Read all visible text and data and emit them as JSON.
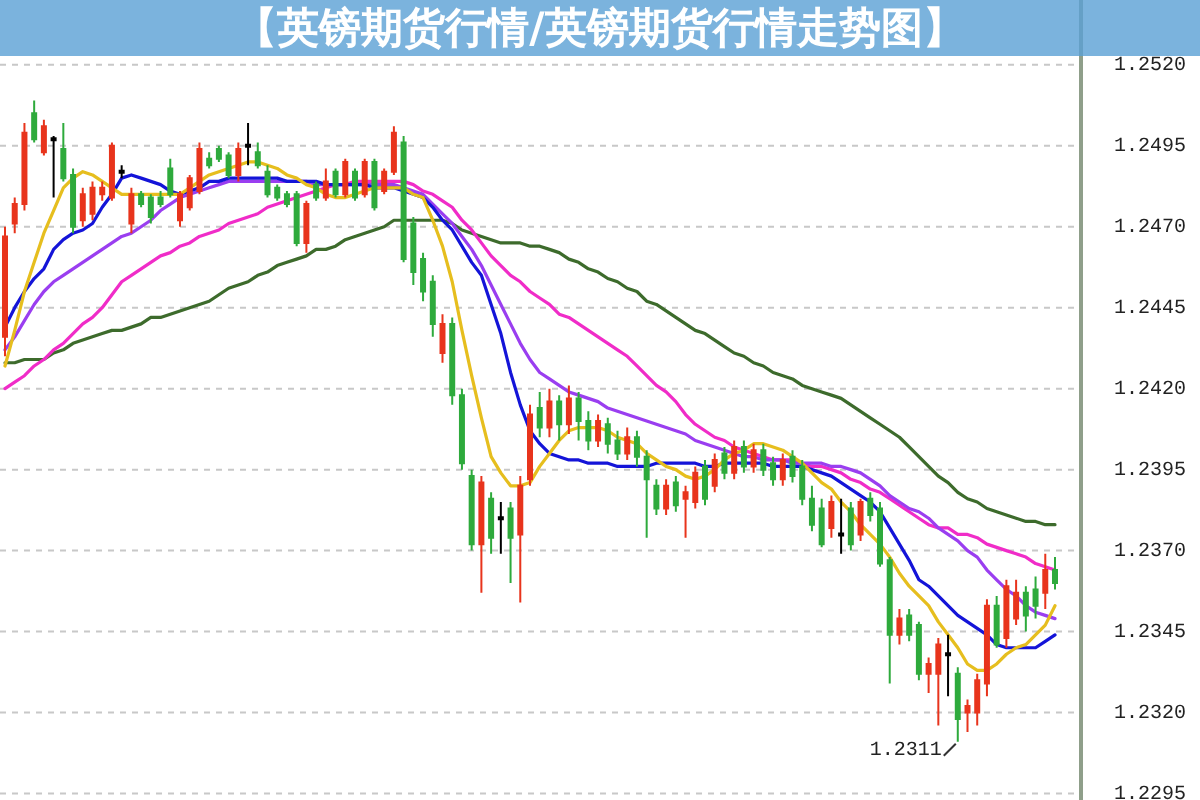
{
  "chart_data": {
    "type": "candlestick",
    "title": "【英镑期货行情/英镑期货行情走势图】",
    "categories": [
      null,
      null,
      null,
      null,
      null,
      null,
      null,
      null,
      null,
      null,
      null,
      null,
      null,
      null,
      null,
      null,
      null,
      null,
      null,
      null,
      null,
      null,
      null,
      null,
      null,
      null,
      null,
      null,
      null,
      null,
      null,
      null,
      null,
      null,
      null,
      null,
      null,
      null,
      null,
      null,
      null,
      null,
      null,
      null,
      null,
      null,
      null,
      null,
      null,
      null,
      null,
      null,
      null,
      null,
      null,
      null,
      null,
      null,
      null,
      null,
      null,
      null,
      null,
      null,
      null,
      null,
      null,
      null,
      null,
      null,
      null,
      null,
      null,
      null,
      null,
      null,
      null,
      null,
      null,
      null,
      null,
      null,
      null,
      null,
      null,
      null,
      null,
      null,
      null,
      null,
      null,
      null,
      null,
      null,
      null,
      null,
      null,
      null,
      null,
      null,
      null,
      null,
      null,
      null,
      null,
      null,
      null,
      null,
      null
    ],
    "ohlc": [
      [
        1.2436,
        1.247,
        1.243,
        1.2467
      ],
      [
        1.2471,
        1.2479,
        1.2468,
        1.2477
      ],
      [
        1.2477,
        1.2502,
        1.2475,
        1.2499
      ],
      [
        1.2505,
        1.2509,
        1.2496,
        1.2497
      ],
      [
        1.2493,
        1.2503,
        1.2492,
        1.2501
      ],
      [
        1.2497,
        1.2498,
        1.2479,
        1.2497
      ],
      [
        1.2494,
        1.2502,
        1.2484,
        1.2485
      ],
      [
        1.2486,
        1.2488,
        1.2468,
        1.247
      ],
      [
        1.2472,
        1.2482,
        1.247,
        1.248
      ],
      [
        1.2474,
        1.2484,
        1.2472,
        1.2482
      ],
      [
        1.248,
        1.2484,
        1.2478,
        1.2482
      ],
      [
        1.2479,
        1.2496,
        1.2478,
        1.2495
      ],
      [
        1.2487,
        1.2489,
        1.2485,
        1.2487
      ],
      [
        1.2471,
        1.2482,
        1.2468,
        1.248
      ],
      [
        1.248,
        1.2481,
        1.2476,
        1.2477
      ],
      [
        1.2479,
        1.248,
        1.2471,
        1.2473
      ],
      [
        1.2479,
        1.2481,
        1.2476,
        1.2477
      ],
      [
        1.2488,
        1.2491,
        1.2479,
        1.248
      ],
      [
        1.2472,
        1.2481,
        1.247,
        1.248
      ],
      [
        1.2476,
        1.2486,
        1.2475,
        1.2485
      ],
      [
        1.2481,
        1.2496,
        1.248,
        1.2494
      ],
      [
        1.2491,
        1.2493,
        1.2488,
        1.2489
      ],
      [
        1.2494,
        1.2495,
        1.249,
        1.2491
      ],
      [
        1.2492,
        1.2493,
        1.2485,
        1.2486
      ],
      [
        1.2486,
        1.2496,
        1.2484,
        1.2494
      ],
      [
        1.2495,
        1.2502,
        1.2489,
        1.2495
      ],
      [
        1.2493,
        1.2496,
        1.2488,
        1.2489
      ],
      [
        1.2487,
        1.2489,
        1.2479,
        1.248
      ],
      [
        1.2482,
        1.2483,
        1.2478,
        1.2479
      ],
      [
        1.248,
        1.2481,
        1.2476,
        1.2477
      ],
      [
        1.248,
        1.2481,
        1.2464,
        1.2465
      ],
      [
        1.2465,
        1.2478,
        1.2462,
        1.2477
      ],
      [
        1.2483,
        1.2484,
        1.2478,
        1.2479
      ],
      [
        1.2479,
        1.2488,
        1.2478,
        1.2484
      ],
      [
        1.2487,
        1.2488,
        1.2479,
        1.248
      ],
      [
        1.248,
        1.2491,
        1.2479,
        1.249
      ],
      [
        1.2487,
        1.2488,
        1.2478,
        1.2479
      ],
      [
        1.248,
        1.2491,
        1.2479,
        1.249
      ],
      [
        1.249,
        1.2491,
        1.2475,
        1.2476
      ],
      [
        1.2481,
        1.2488,
        1.248,
        1.2487
      ],
      [
        1.2487,
        1.2501,
        1.2486,
        1.2499
      ],
      [
        1.2496,
        1.2498,
        1.2459,
        1.246
      ],
      [
        1.2471,
        1.2473,
        1.2452,
        1.2456
      ],
      [
        1.246,
        1.2462,
        1.2447,
        1.245
      ],
      [
        1.2453,
        1.2455,
        1.2436,
        1.244
      ],
      [
        1.2431,
        1.2443,
        1.2428,
        1.244
      ],
      [
        1.244,
        1.2442,
        1.2415,
        1.2418
      ],
      [
        1.2418,
        1.242,
        1.2395,
        1.2397
      ],
      [
        1.2393,
        1.2395,
        1.237,
        1.2372
      ],
      [
        1.2372,
        1.2393,
        1.2357,
        1.2391
      ],
      [
        1.2386,
        1.2388,
        1.2369,
        1.2374
      ],
      [
        1.238,
        1.2385,
        1.2369,
        1.238
      ],
      [
        1.2383,
        1.2385,
        1.236,
        1.2374
      ],
      [
        1.2375,
        1.2393,
        1.2354,
        1.239
      ],
      [
        1.2392,
        1.2415,
        1.239,
        1.2412
      ],
      [
        1.2414,
        1.2419,
        1.2405,
        1.2408
      ],
      [
        1.2408,
        1.242,
        1.2405,
        1.2416
      ],
      [
        1.2416,
        1.2418,
        1.2404,
        1.2409
      ],
      [
        1.2409,
        1.2421,
        1.2406,
        1.2417
      ],
      [
        1.2417,
        1.2419,
        1.2404,
        1.241
      ],
      [
        1.241,
        1.2413,
        1.2401,
        1.2404
      ],
      [
        1.2404,
        1.2412,
        1.2402,
        1.241
      ],
      [
        1.2409,
        1.2411,
        1.24,
        1.2403
      ],
      [
        1.2404,
        1.2407,
        1.2398,
        1.24
      ],
      [
        1.24,
        1.2408,
        1.2398,
        1.2405
      ],
      [
        1.2405,
        1.2407,
        1.2396,
        1.2399
      ],
      [
        1.2399,
        1.2401,
        1.2374,
        1.2392
      ],
      [
        1.239,
        1.2392,
        1.2381,
        1.2383
      ],
      [
        1.2383,
        1.2392,
        1.2381,
        1.239
      ],
      [
        1.2391,
        1.2393,
        1.2382,
        1.2384
      ],
      [
        1.2386,
        1.239,
        1.2374,
        1.2388
      ],
      [
        1.2385,
        1.2396,
        1.2383,
        1.2394
      ],
      [
        1.2396,
        1.2398,
        1.2384,
        1.2386
      ],
      [
        1.239,
        1.24,
        1.2388,
        1.2398
      ],
      [
        1.24,
        1.2402,
        1.2392,
        1.2394
      ],
      [
        1.2394,
        1.2404,
        1.2392,
        1.2402
      ],
      [
        1.2402,
        1.2404,
        1.2394,
        1.2396
      ],
      [
        1.2396,
        1.2403,
        1.2394,
        1.2401
      ],
      [
        1.2401,
        1.2403,
        1.2393,
        1.2395
      ],
      [
        1.2397,
        1.2399,
        1.239,
        1.2392
      ],
      [
        1.2392,
        1.24,
        1.239,
        1.2398
      ],
      [
        1.2399,
        1.2401,
        1.2391,
        1.2393
      ],
      [
        1.2396,
        1.2398,
        1.2384,
        1.2386
      ],
      [
        1.2386,
        1.239,
        1.2376,
        1.2378
      ],
      [
        1.2383,
        1.2386,
        1.2371,
        1.2372
      ],
      [
        1.2377,
        1.2387,
        1.2374,
        1.2385
      ],
      [
        1.2375,
        1.2386,
        1.2369,
        1.2375
      ],
      [
        1.2383,
        1.2385,
        1.237,
        1.2372
      ],
      [
        1.2375,
        1.2386,
        1.2373,
        1.2385
      ],
      [
        1.2386,
        1.2388,
        1.2379,
        1.2381
      ],
      [
        1.2383,
        1.2385,
        1.2365,
        1.2366
      ],
      [
        1.2367,
        1.2368,
        1.2329,
        1.2344
      ],
      [
        1.2344,
        1.2352,
        1.2341,
        1.2349
      ],
      [
        1.235,
        1.2352,
        1.2342,
        1.2344
      ],
      [
        1.2347,
        1.2348,
        1.233,
        1.2332
      ],
      [
        1.2332,
        1.2337,
        1.2326,
        1.2335
      ],
      [
        1.2332,
        1.2343,
        1.2316,
        1.2341
      ],
      [
        1.2338,
        1.2344,
        1.2325,
        1.2338
      ],
      [
        1.2332,
        1.2334,
        1.2311,
        1.2318
      ],
      [
        1.232,
        1.2324,
        1.2314,
        1.2322
      ],
      [
        1.232,
        1.2332,
        1.2316,
        1.233
      ],
      [
        1.2329,
        1.2355,
        1.2325,
        1.2353
      ],
      [
        1.2353,
        1.2356,
        1.234,
        1.2341
      ],
      [
        1.2343,
        1.2361,
        1.234,
        1.2359
      ],
      [
        1.2349,
        1.2361,
        1.2347,
        1.2357
      ],
      [
        1.2357,
        1.2359,
        1.2345,
        1.235
      ],
      [
        1.2358,
        1.2362,
        1.2349,
        1.2353
      ],
      [
        1.2357,
        1.2369,
        1.2352,
        1.2364
      ],
      [
        1.2364,
        1.2368,
        1.2358,
        1.236
      ]
    ],
    "colors": [
      "#e8341c",
      "#e8341c",
      "#e8341c",
      "#2eaa3c",
      "#e8341c",
      "#000000",
      "#2eaa3c",
      "#2eaa3c",
      "#e8341c",
      "#e8341c",
      "#e8341c",
      "#e8341c",
      "#000000",
      "#e8341c",
      "#2eaa3c",
      "#2eaa3c",
      "#2eaa3c",
      "#2eaa3c",
      "#e8341c",
      "#e8341c",
      "#e8341c",
      "#2eaa3c",
      "#2eaa3c",
      "#2eaa3c",
      "#e8341c",
      "#000000",
      "#2eaa3c",
      "#2eaa3c",
      "#2eaa3c",
      "#2eaa3c",
      "#2eaa3c",
      "#e8341c",
      "#2eaa3c",
      "#e8341c",
      "#2eaa3c",
      "#e8341c",
      "#2eaa3c",
      "#e8341c",
      "#2eaa3c",
      "#e8341c",
      "#e8341c",
      "#2eaa3c",
      "#2eaa3c",
      "#2eaa3c",
      "#2eaa3c",
      "#e8341c",
      "#2eaa3c",
      "#2eaa3c",
      "#2eaa3c",
      "#e8341c",
      "#2eaa3c",
      "#000000",
      "#2eaa3c",
      "#e8341c",
      "#e8341c",
      "#2eaa3c",
      "#e8341c",
      "#2eaa3c",
      "#e8341c",
      "#2eaa3c",
      "#2eaa3c",
      "#e8341c",
      "#2eaa3c",
      "#2eaa3c",
      "#e8341c",
      "#2eaa3c",
      "#2eaa3c",
      "#2eaa3c",
      "#e8341c",
      "#2eaa3c",
      "#e8341c",
      "#e8341c",
      "#2eaa3c",
      "#e8341c",
      "#2eaa3c",
      "#e8341c",
      "#2eaa3c",
      "#e8341c",
      "#2eaa3c",
      "#2eaa3c",
      "#e8341c",
      "#2eaa3c",
      "#2eaa3c",
      "#2eaa3c",
      "#2eaa3c",
      "#e8341c",
      "#000000",
      "#2eaa3c",
      "#e8341c",
      "#2eaa3c",
      "#2eaa3c",
      "#2eaa3c",
      "#e8341c",
      "#2eaa3c",
      "#2eaa3c",
      "#e8341c",
      "#e8341c",
      "#000000",
      "#2eaa3c",
      "#e8341c",
      "#e8341c",
      "#e8341c",
      "#2eaa3c",
      "#e8341c",
      "#e8341c",
      "#2eaa3c",
      "#2eaa3c",
      "#e8341c",
      "#2eaa3c"
    ],
    "series": [
      {
        "type": "line",
        "color": "#3d6b2c",
        "values": [
          1.2428,
          1.2428,
          1.2429,
          1.2429,
          1.2429,
          1.2431,
          1.2432,
          1.2434,
          1.2435,
          1.2436,
          1.2437,
          1.2438,
          1.2438,
          1.2439,
          1.244,
          1.2442,
          1.2442,
          1.2443,
          1.2444,
          1.2445,
          1.2446,
          1.2447,
          1.2449,
          1.2451,
          1.2452,
          1.2453,
          1.2455,
          1.2456,
          1.2458,
          1.2459,
          1.246,
          1.2461,
          1.2463,
          1.2463,
          1.2464,
          1.2466,
          1.2467,
          1.2468,
          1.2469,
          1.247,
          1.2472,
          1.2472,
          1.2472,
          1.2472,
          1.2472,
          1.2472,
          1.2471,
          1.2469,
          1.2468,
          1.2467,
          1.2466,
          1.2465,
          1.2465,
          1.2465,
          1.2464,
          1.2464,
          1.2463,
          1.2462,
          1.246,
          1.2459,
          1.2457,
          1.2456,
          1.2454,
          1.2453,
          1.2451,
          1.245,
          1.2447,
          1.2446,
          1.2444,
          1.2442,
          1.244,
          1.2438,
          1.2437,
          1.2435,
          1.2433,
          1.2431,
          1.243,
          1.2428,
          1.2427,
          1.2425,
          1.2424,
          1.2423,
          1.2421,
          1.242,
          1.2419,
          1.2418,
          1.2417,
          1.2415,
          1.2413,
          1.2411,
          1.2409,
          1.2407,
          1.2405,
          1.2402,
          1.2399,
          1.2396,
          1.2393,
          1.2391,
          1.2388,
          1.2386,
          1.2385,
          1.2383,
          1.2382,
          1.2381,
          1.238,
          1.2379,
          1.2379,
          1.2378,
          1.2378
        ]
      },
      {
        "type": "line",
        "color": "#f02cc8",
        "values": [
          1.242,
          1.2422,
          1.2424,
          1.2427,
          1.2429,
          1.2432,
          1.2434,
          1.2437,
          1.244,
          1.2442,
          1.2445,
          1.2449,
          1.2453,
          1.2455,
          1.2457,
          1.2459,
          1.2461,
          1.2462,
          1.2464,
          1.2465,
          1.2467,
          1.2468,
          1.2469,
          1.2471,
          1.2472,
          1.2473,
          1.2474,
          1.2476,
          1.2477,
          1.2478,
          1.2479,
          1.248,
          1.2481,
          1.2482,
          1.2483,
          1.2483,
          1.2484,
          1.2484,
          1.2484,
          1.2484,
          1.2484,
          1.2484,
          1.2483,
          1.2481,
          1.248,
          1.2478,
          1.2476,
          1.2472,
          1.2469,
          1.2465,
          1.2461,
          1.2458,
          1.2455,
          1.2453,
          1.245,
          1.2448,
          1.2446,
          1.2443,
          1.2442,
          1.244,
          1.2438,
          1.2436,
          1.2434,
          1.2432,
          1.243,
          1.2427,
          1.2424,
          1.2421,
          1.2419,
          1.2416,
          1.2412,
          1.2409,
          1.2407,
          1.2405,
          1.2404,
          1.2402,
          1.2401,
          1.24,
          1.2399,
          1.2398,
          1.2398,
          1.2398,
          1.2397,
          1.2396,
          1.2396,
          1.2395,
          1.2394,
          1.2392,
          1.2391,
          1.2389,
          1.2388,
          1.2386,
          1.2384,
          1.2382,
          1.238,
          1.2378,
          1.2377,
          1.2377,
          1.2375,
          1.2375,
          1.2374,
          1.2372,
          1.2371,
          1.237,
          1.2369,
          1.2368,
          1.2366,
          1.2365,
          1.2364
        ]
      },
      {
        "type": "line",
        "color": "#9a3ef0",
        "values": [
          1.2432,
          1.2436,
          1.2441,
          1.2446,
          1.245,
          1.2453,
          1.2455,
          1.2457,
          1.2459,
          1.2461,
          1.2463,
          1.2465,
          1.2467,
          1.2468,
          1.247,
          1.2472,
          1.2475,
          1.2477,
          1.2479,
          1.248,
          1.2481,
          1.2482,
          1.2483,
          1.2484,
          1.2484,
          1.2484,
          1.2484,
          1.2484,
          1.2484,
          1.2484,
          1.2484,
          1.2484,
          1.2483,
          1.2483,
          1.2483,
          1.2483,
          1.2483,
          1.2483,
          1.2483,
          1.2483,
          1.2483,
          1.2482,
          1.2481,
          1.248,
          1.2477,
          1.2474,
          1.2471,
          1.2467,
          1.2463,
          1.2458,
          1.2452,
          1.2446,
          1.244,
          1.2434,
          1.2429,
          1.2425,
          1.2423,
          1.2421,
          1.2419,
          1.2418,
          1.2417,
          1.2416,
          1.2414,
          1.2413,
          1.2412,
          1.2411,
          1.241,
          1.2409,
          1.2408,
          1.2407,
          1.2406,
          1.2404,
          1.2403,
          1.2402,
          1.2401,
          1.24,
          1.2399,
          1.2399,
          1.2398,
          1.2398,
          1.2398,
          1.2397,
          1.2397,
          1.2397,
          1.2397,
          1.2396,
          1.2396,
          1.2395,
          1.2394,
          1.2392,
          1.239,
          1.2387,
          1.2385,
          1.2383,
          1.2382,
          1.238,
          1.2377,
          1.2375,
          1.2373,
          1.237,
          1.2368,
          1.2364,
          1.2361,
          1.2358,
          1.2356,
          1.2353,
          1.2351,
          1.235,
          1.2349
        ]
      },
      {
        "type": "line",
        "color": "#1414d8",
        "values": [
          1.2439,
          1.2445,
          1.245,
          1.2454,
          1.2457,
          1.2463,
          1.2466,
          1.2468,
          1.2469,
          1.2471,
          1.2476,
          1.248,
          1.2485,
          1.2486,
          1.2485,
          1.2484,
          1.2483,
          1.2481,
          1.248,
          1.2481,
          1.2482,
          1.2484,
          1.2484,
          1.2485,
          1.2485,
          1.2485,
          1.2485,
          1.2485,
          1.2485,
          1.2484,
          1.2484,
          1.2484,
          1.2484,
          1.2483,
          1.2483,
          1.2483,
          1.2483,
          1.2483,
          1.2482,
          1.2482,
          1.2482,
          1.2481,
          1.248,
          1.2479,
          1.2476,
          1.2472,
          1.2469,
          1.2464,
          1.2459,
          1.2455,
          1.2446,
          1.2437,
          1.2425,
          1.2415,
          1.2407,
          1.2403,
          1.24,
          1.2399,
          1.2398,
          1.2398,
          1.2397,
          1.2397,
          1.2397,
          1.2396,
          1.2396,
          1.2396,
          1.2396,
          1.2397,
          1.2397,
          1.2397,
          1.2397,
          1.2397,
          1.2396,
          1.2396,
          1.2397,
          1.2397,
          1.2397,
          1.2397,
          1.2397,
          1.2396,
          1.2396,
          1.2396,
          1.2396,
          1.2395,
          1.2394,
          1.2393,
          1.2391,
          1.2389,
          1.2387,
          1.2385,
          1.2382,
          1.2377,
          1.2372,
          1.2367,
          1.2361,
          1.2359,
          1.2356,
          1.2353,
          1.235,
          1.2348,
          1.2346,
          1.2344,
          1.2341,
          1.234,
          1.234,
          1.234,
          1.234,
          1.2342,
          1.2344
        ]
      },
      {
        "type": "line",
        "color": "#e6be1e",
        "values": [
          1.2427,
          1.2438,
          1.245,
          1.2459,
          1.2468,
          1.2475,
          1.2482,
          1.2485,
          1.2487,
          1.2486,
          1.2484,
          1.2482,
          1.248,
          1.248,
          1.248,
          1.248,
          1.248,
          1.248,
          1.248,
          1.2482,
          1.2484,
          1.2486,
          1.2487,
          1.2488,
          1.2489,
          1.249,
          1.249,
          1.2489,
          1.2488,
          1.2486,
          1.2485,
          1.2483,
          1.2482,
          1.248,
          1.2479,
          1.2479,
          1.248,
          1.2481,
          1.2482,
          1.2482,
          1.2482,
          1.2482,
          1.248,
          1.2479,
          1.2472,
          1.2464,
          1.2453,
          1.2438,
          1.2424,
          1.2411,
          1.2399,
          1.2394,
          1.239,
          1.239,
          1.2391,
          1.2396,
          1.24,
          1.2404,
          1.2407,
          1.2408,
          1.2408,
          1.2408,
          1.2407,
          1.2405,
          1.2404,
          1.2403,
          1.24,
          1.2398,
          1.2396,
          1.2395,
          1.2393,
          1.2392,
          1.2393,
          1.2395,
          1.2398,
          1.24,
          1.2401,
          1.2403,
          1.2403,
          1.2402,
          1.2401,
          1.2399,
          1.2397,
          1.2394,
          1.2391,
          1.2389,
          1.2385,
          1.2382,
          1.2378,
          1.2375,
          1.2372,
          1.2368,
          1.2363,
          1.2359,
          1.2356,
          1.2353,
          1.2348,
          1.2344,
          1.234,
          1.2335,
          1.2333,
          1.2333,
          1.2335,
          1.2338,
          1.234,
          1.2341,
          1.2344,
          1.2347,
          1.2353
        ]
      }
    ],
    "ylim": [
      1.2293,
      1.254
    ],
    "yticks": [
      1.2295,
      {
        "value": 1.232,
        "label": "1.2320"
      },
      1.2345,
      {
        "value": 1.237,
        "label": "1.2370"
      },
      1.2395,
      {
        "value": 1.242,
        "label": "1.2420"
      },
      1.2445,
      {
        "value": 1.247,
        "label": "1.2470"
      },
      1.2495,
      {
        "value": 1.252,
        "label": "1.2520"
      }
    ],
    "grid": "y",
    "tick_labels": "y",
    "annotations": [
      "1.2311"
    ]
  }
}
